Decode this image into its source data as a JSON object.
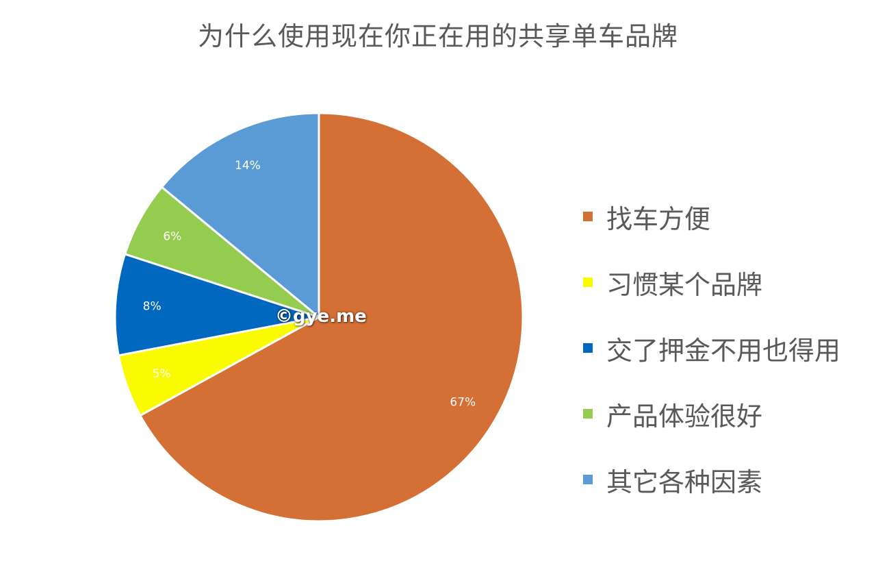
{
  "chart_data": {
    "type": "pie",
    "title": "为什么使用现在你正在用的共享单车品牌",
    "categories": [
      "找车方便",
      "习惯某个品牌",
      "交了押金不用也得用",
      "产品体验很好",
      "其它各种因素"
    ],
    "values": [
      67,
      5,
      8,
      6,
      14
    ],
    "value_labels": [
      "67%",
      "5%",
      "8%",
      "6%",
      "14%"
    ],
    "colors": [
      "#d46f35",
      "#fafa00",
      "#0068be",
      "#93cc4e",
      "#5b9bd5"
    ],
    "legend_position": "right"
  },
  "watermark": {
    "text": "©gye.me"
  }
}
